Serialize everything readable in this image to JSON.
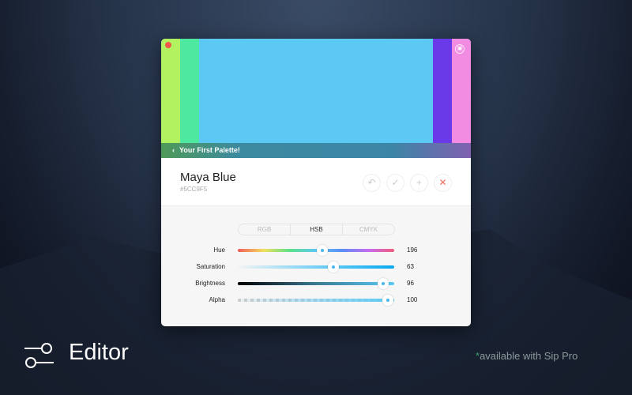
{
  "palette": {
    "name": "Your First Palette!",
    "swatches": [
      "#B2F160",
      "#4EE8A0",
      "#5CC9F5",
      "#6A3AE8",
      "#F28BE2"
    ]
  },
  "color": {
    "name": "Maya Blue",
    "hex": "#5CC9F5"
  },
  "actions": [
    {
      "icon": "undo-icon"
    },
    {
      "icon": "check-icon"
    },
    {
      "icon": "plus-icon"
    },
    {
      "icon": "close-icon"
    }
  ],
  "tabs": [
    {
      "label": "RGB"
    },
    {
      "label": "HSB",
      "active": true
    },
    {
      "label": "CMYK"
    }
  ],
  "sliders": [
    {
      "label": "Hue",
      "value": "196",
      "fraction": 0.54
    },
    {
      "label": "Saturation",
      "value": "63",
      "fraction": 0.61
    },
    {
      "label": "Brightness",
      "value": "96",
      "fraction": 0.93
    },
    {
      "label": "Alpha",
      "value": "100",
      "fraction": 0.96
    }
  ],
  "caption": {
    "title": "Editor",
    "note_star": "*",
    "note": "available with Sip Pro"
  }
}
